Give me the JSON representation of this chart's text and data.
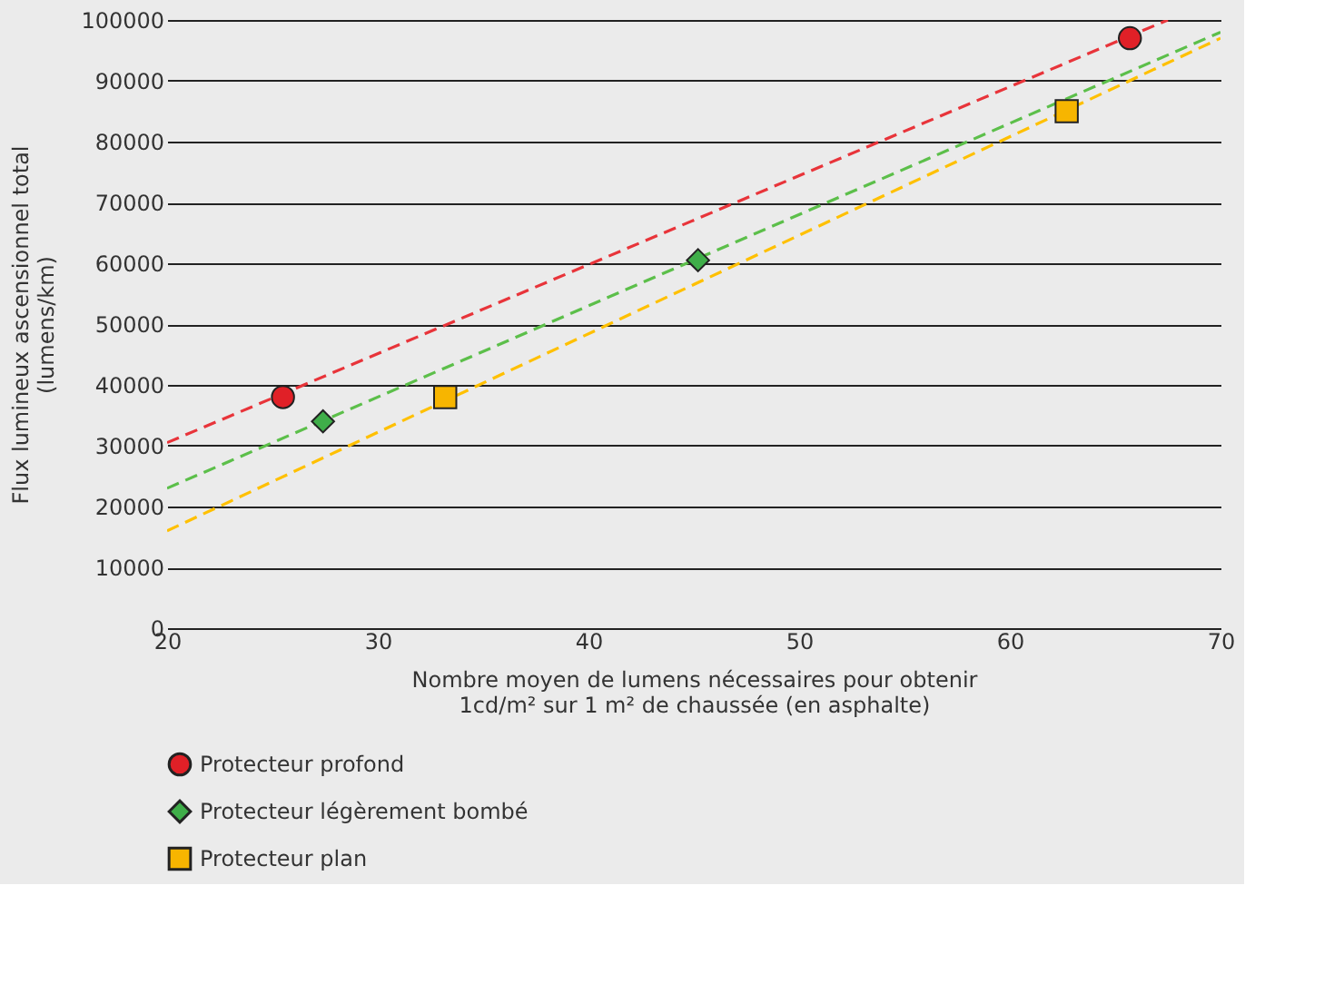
{
  "chart_data": {
    "type": "scatter",
    "xlabel": "Nombre moyen de lumens nécessaires pour obtenir\n1cd/m² sur 1 m² de chaussée (en asphalte)",
    "ylabel": "Flux lumineux ascensionnel total\n(lumens/km)",
    "xlim": [
      20,
      70
    ],
    "xticks": [
      20,
      30,
      40,
      50,
      60,
      70
    ],
    "ylim": [
      0,
      100000
    ],
    "yticks": [
      0,
      10000,
      20000,
      30000,
      40000,
      50000,
      60000,
      70000,
      80000,
      90000,
      100000
    ],
    "grid": "y",
    "legend": "bottom",
    "series": [
      {
        "name": "Protecteur profond",
        "marker": "circle",
        "color": "#e02027",
        "x": [
          25.5,
          65.7
        ],
        "values": [
          38000,
          97000
        ]
      },
      {
        "name": "Protecteur légèrement bombé",
        "marker": "diamond",
        "color": "#3fae49",
        "x": [
          27.4,
          45.2
        ],
        "values": [
          34000,
          60500
        ]
      },
      {
        "name": "Protecteur plan",
        "marker": "square",
        "color": "#f7b500",
        "x": [
          33.2,
          62.7
        ],
        "values": [
          38000,
          85000
        ]
      },
      {
        "type": "line",
        "line_style": "dashed",
        "marker": "none",
        "color": "#e8343a",
        "x": [
          20,
          67.5
        ],
        "values": [
          30500,
          100000
        ]
      },
      {
        "type": "line",
        "line_style": "dashed",
        "marker": "none",
        "color": "#5cbf4a",
        "x": [
          20,
          70
        ],
        "values": [
          23000,
          98000
        ]
      },
      {
        "type": "line",
        "line_style": "dashed",
        "marker": "none",
        "color": "#ffc000",
        "x": [
          20,
          70
        ],
        "values": [
          16000,
          97000
        ]
      }
    ]
  }
}
